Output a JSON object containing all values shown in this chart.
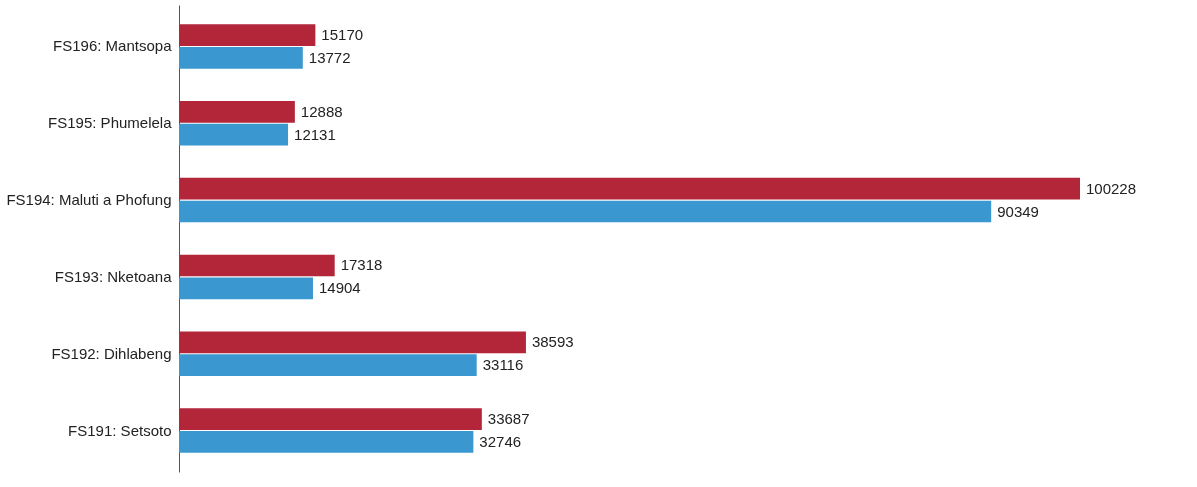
{
  "chart_data": {
    "type": "bar",
    "orientation": "horizontal",
    "categories": [
      "FS196: Mantsopa",
      "FS195: Phumelela",
      "FS194: Maluti a Phofung",
      "FS193: Nketoana",
      "FS192: Dihlabeng",
      "FS191: Setsoto"
    ],
    "series": [
      {
        "color": "#b3263a",
        "values": [
          15170,
          12888,
          100228,
          17318,
          38593,
          33687
        ]
      },
      {
        "color": "#3b97cf",
        "values": [
          13772,
          12131,
          90349,
          14904,
          33116,
          32746
        ]
      }
    ],
    "data_labels": true
  }
}
